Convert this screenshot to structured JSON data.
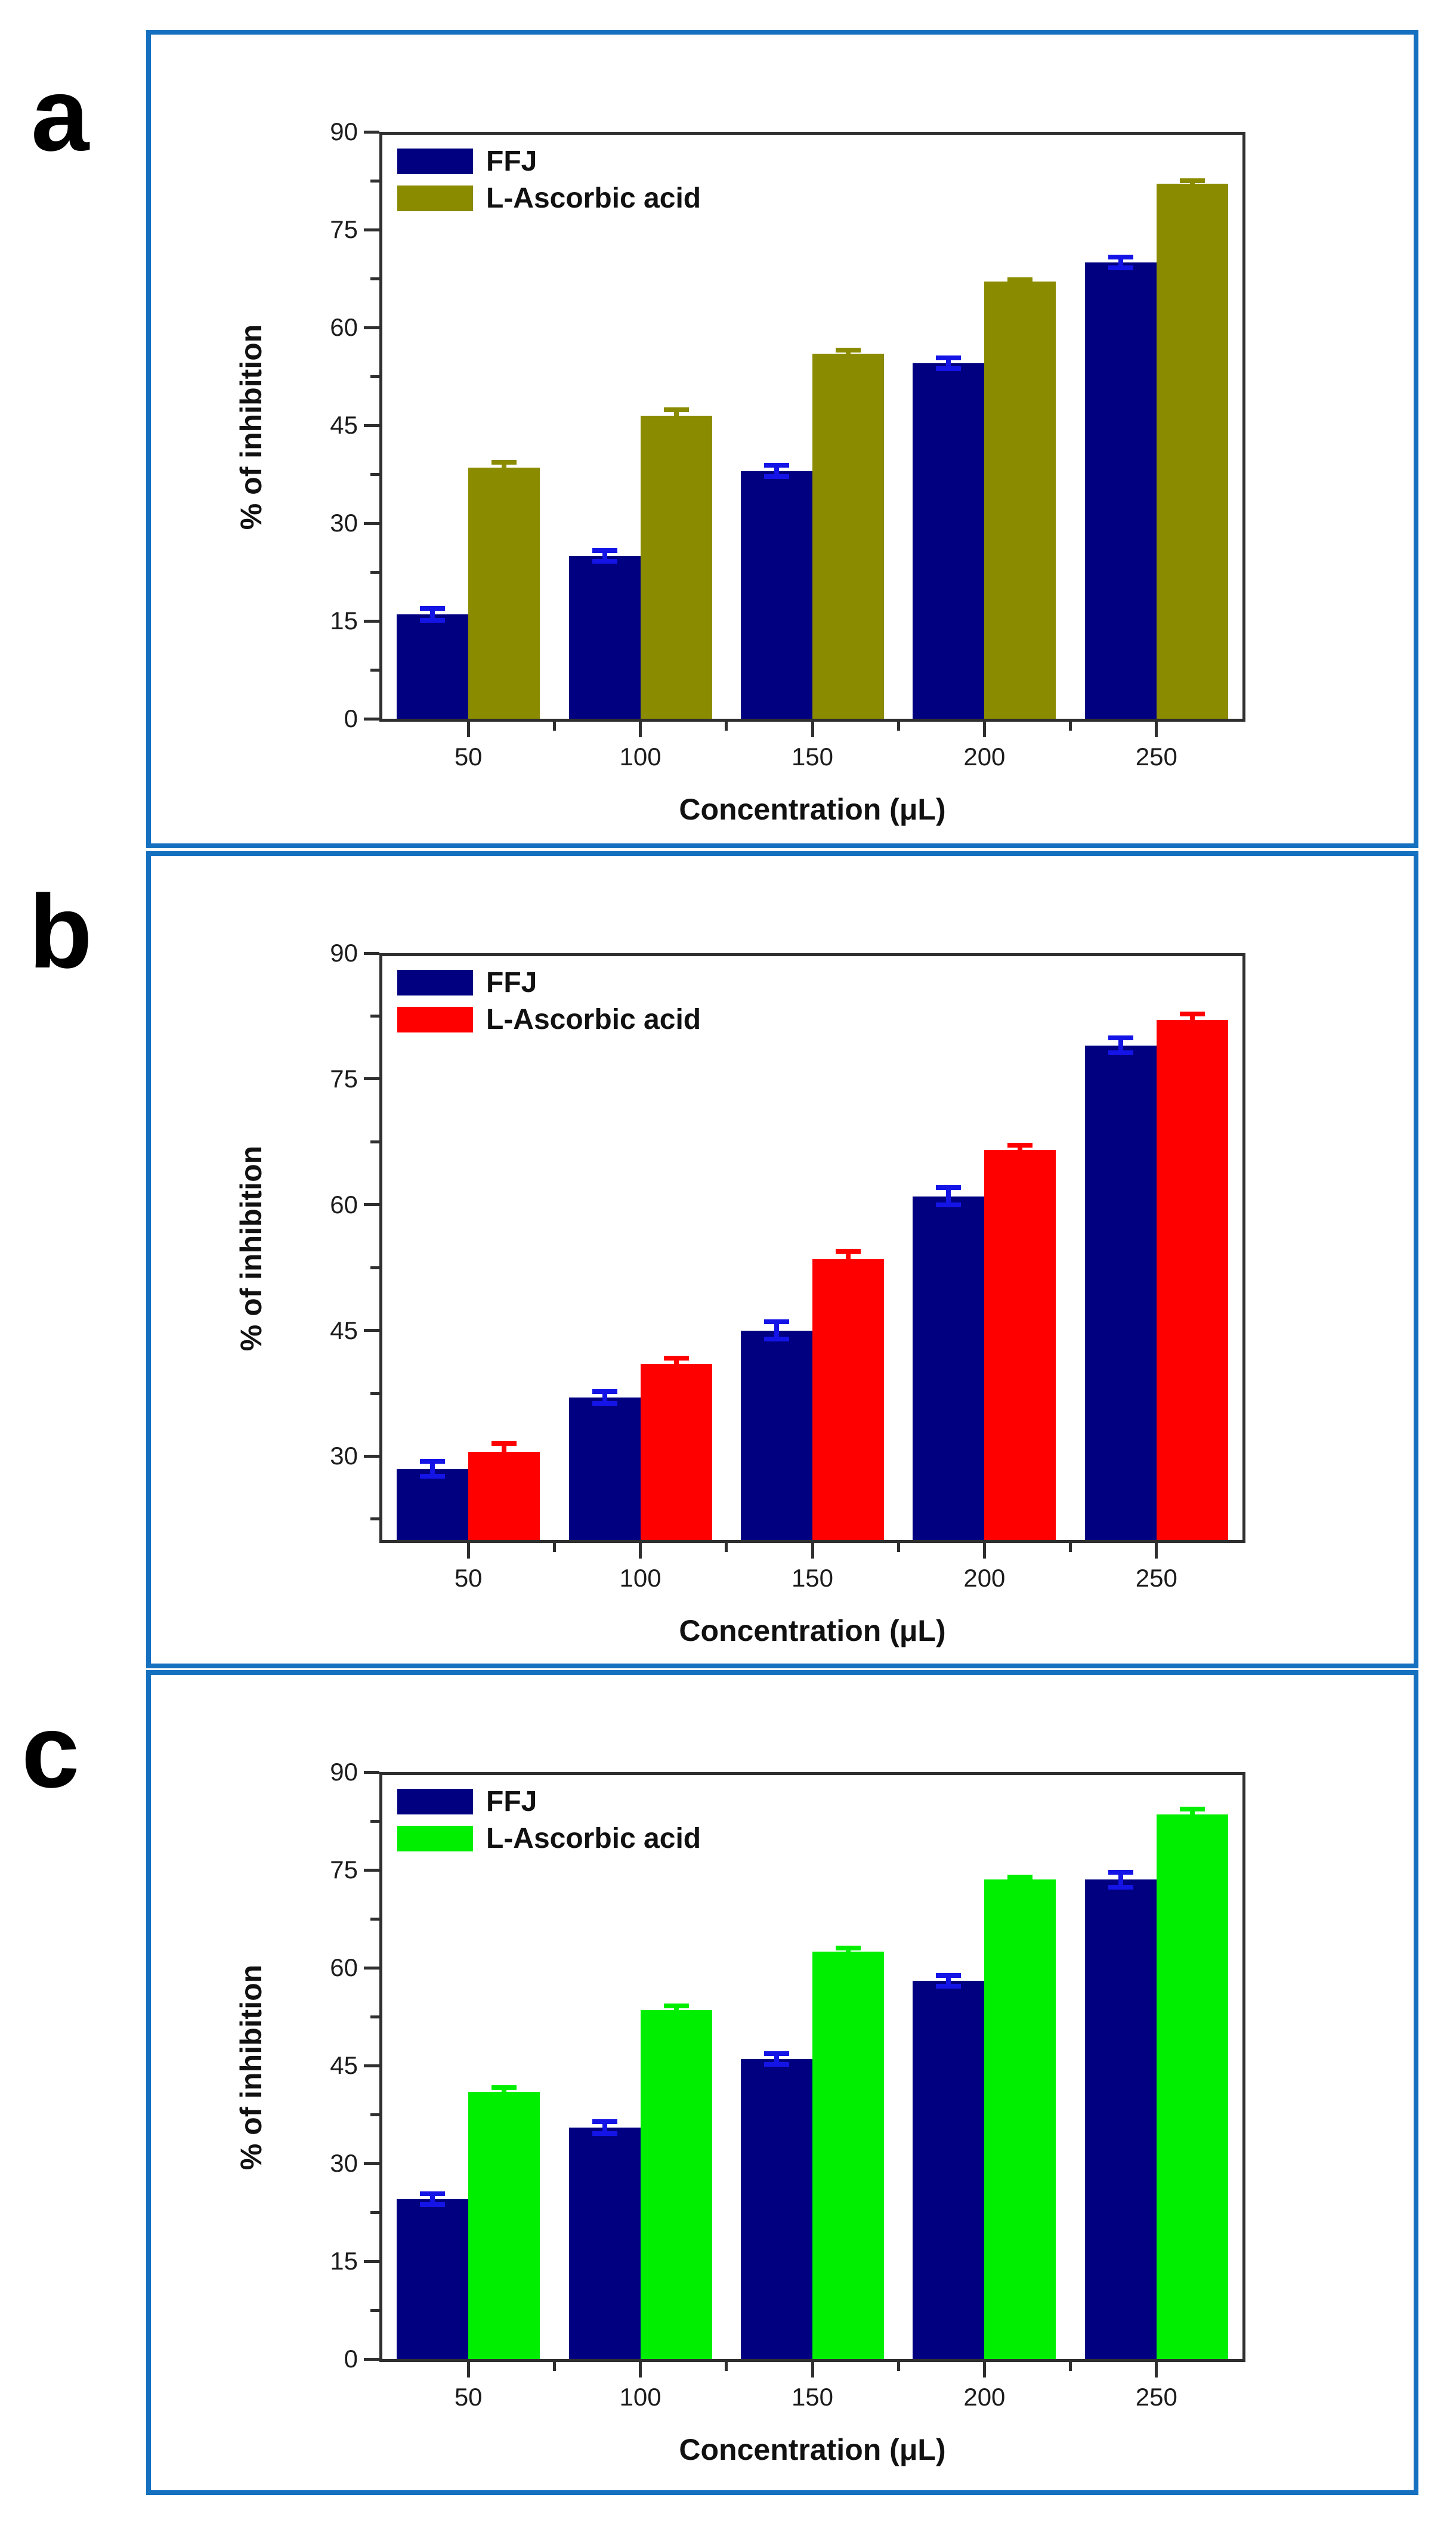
{
  "figure": {
    "background": "#ffffff",
    "panel_border_color": "#1670c0",
    "axis_color": "#2f2f2f"
  },
  "panel_letters": [
    "a",
    "b",
    "c"
  ],
  "chart_data": [
    {
      "type": "bar",
      "panel": "a",
      "xlabel": "Concentration (μL)",
      "ylabel": "% of inhibition",
      "categories": [
        50,
        100,
        150,
        200,
        250
      ],
      "series": [
        {
          "name": "FFJ",
          "color": "#000080",
          "error_color": "#1414e6",
          "values": [
            16,
            25,
            38,
            54.5,
            70
          ],
          "errors": [
            1.3,
            1.2,
            1.2,
            1.2,
            1.2
          ]
        },
        {
          "name": "L-Ascorbic acid",
          "color": "#8b8b00",
          "error_color": "#8b8b00",
          "values": [
            38.5,
            46.5,
            56,
            67,
            82
          ],
          "errors": [
            1.2,
            1.2,
            0.9,
            0.7,
            0.9
          ]
        }
      ],
      "ylim": [
        0,
        90
      ],
      "yticks": [
        0,
        15,
        30,
        45,
        60,
        75,
        90
      ],
      "yminor": [
        7.5,
        22.5,
        37.5,
        52.5,
        67.5,
        82.5
      ],
      "legend_position": "top-left",
      "grid": false
    },
    {
      "type": "bar",
      "panel": "b",
      "xlabel": "Concentration (μL)",
      "ylabel": "% of inhibition",
      "categories": [
        50,
        100,
        150,
        200,
        250
      ],
      "series": [
        {
          "name": "FFJ",
          "color": "#000080",
          "error_color": "#1414e6",
          "values": [
            28.5,
            37,
            45,
            61,
            79
          ],
          "errors": [
            1.2,
            1.0,
            1.3,
            1.3,
            1.2
          ]
        },
        {
          "name": "L-Ascorbic acid",
          "color": "#ff0000",
          "error_color": "#ff0000",
          "values": [
            30.5,
            41,
            53.5,
            66.5,
            82
          ],
          "errors": [
            1.3,
            1.0,
            1.2,
            0.9,
            1.0
          ]
        }
      ],
      "ylim": [
        20,
        90
      ],
      "yticks": [
        30,
        45,
        60,
        75,
        90
      ],
      "yminor": [
        22.5,
        37.5,
        52.5,
        67.5,
        82.5
      ],
      "legend_position": "top-left",
      "grid": false
    },
    {
      "type": "bar",
      "panel": "c",
      "xlabel": "Concentration (μL)",
      "ylabel": "% of inhibition",
      "categories": [
        50,
        100,
        150,
        200,
        250
      ],
      "series": [
        {
          "name": "FFJ",
          "color": "#000080",
          "error_color": "#1414e6",
          "values": [
            24.5,
            35.5,
            46,
            58,
            73.5
          ],
          "errors": [
            1.2,
            1.3,
            1.2,
            1.2,
            1.5
          ]
        },
        {
          "name": "L-Ascorbic acid",
          "color": "#00ee00",
          "error_color": "#00ee00",
          "values": [
            41,
            53.5,
            62.5,
            73.5,
            83.5
          ],
          "errors": [
            1.0,
            1.0,
            0.9,
            0.8,
            1.2
          ]
        }
      ],
      "ylim": [
        0,
        90
      ],
      "yticks": [
        0,
        15,
        30,
        45,
        60,
        75,
        90
      ],
      "yminor": [
        7.5,
        22.5,
        37.5,
        52.5,
        67.5,
        82.5
      ],
      "legend_position": "top-left",
      "grid": false
    }
  ]
}
